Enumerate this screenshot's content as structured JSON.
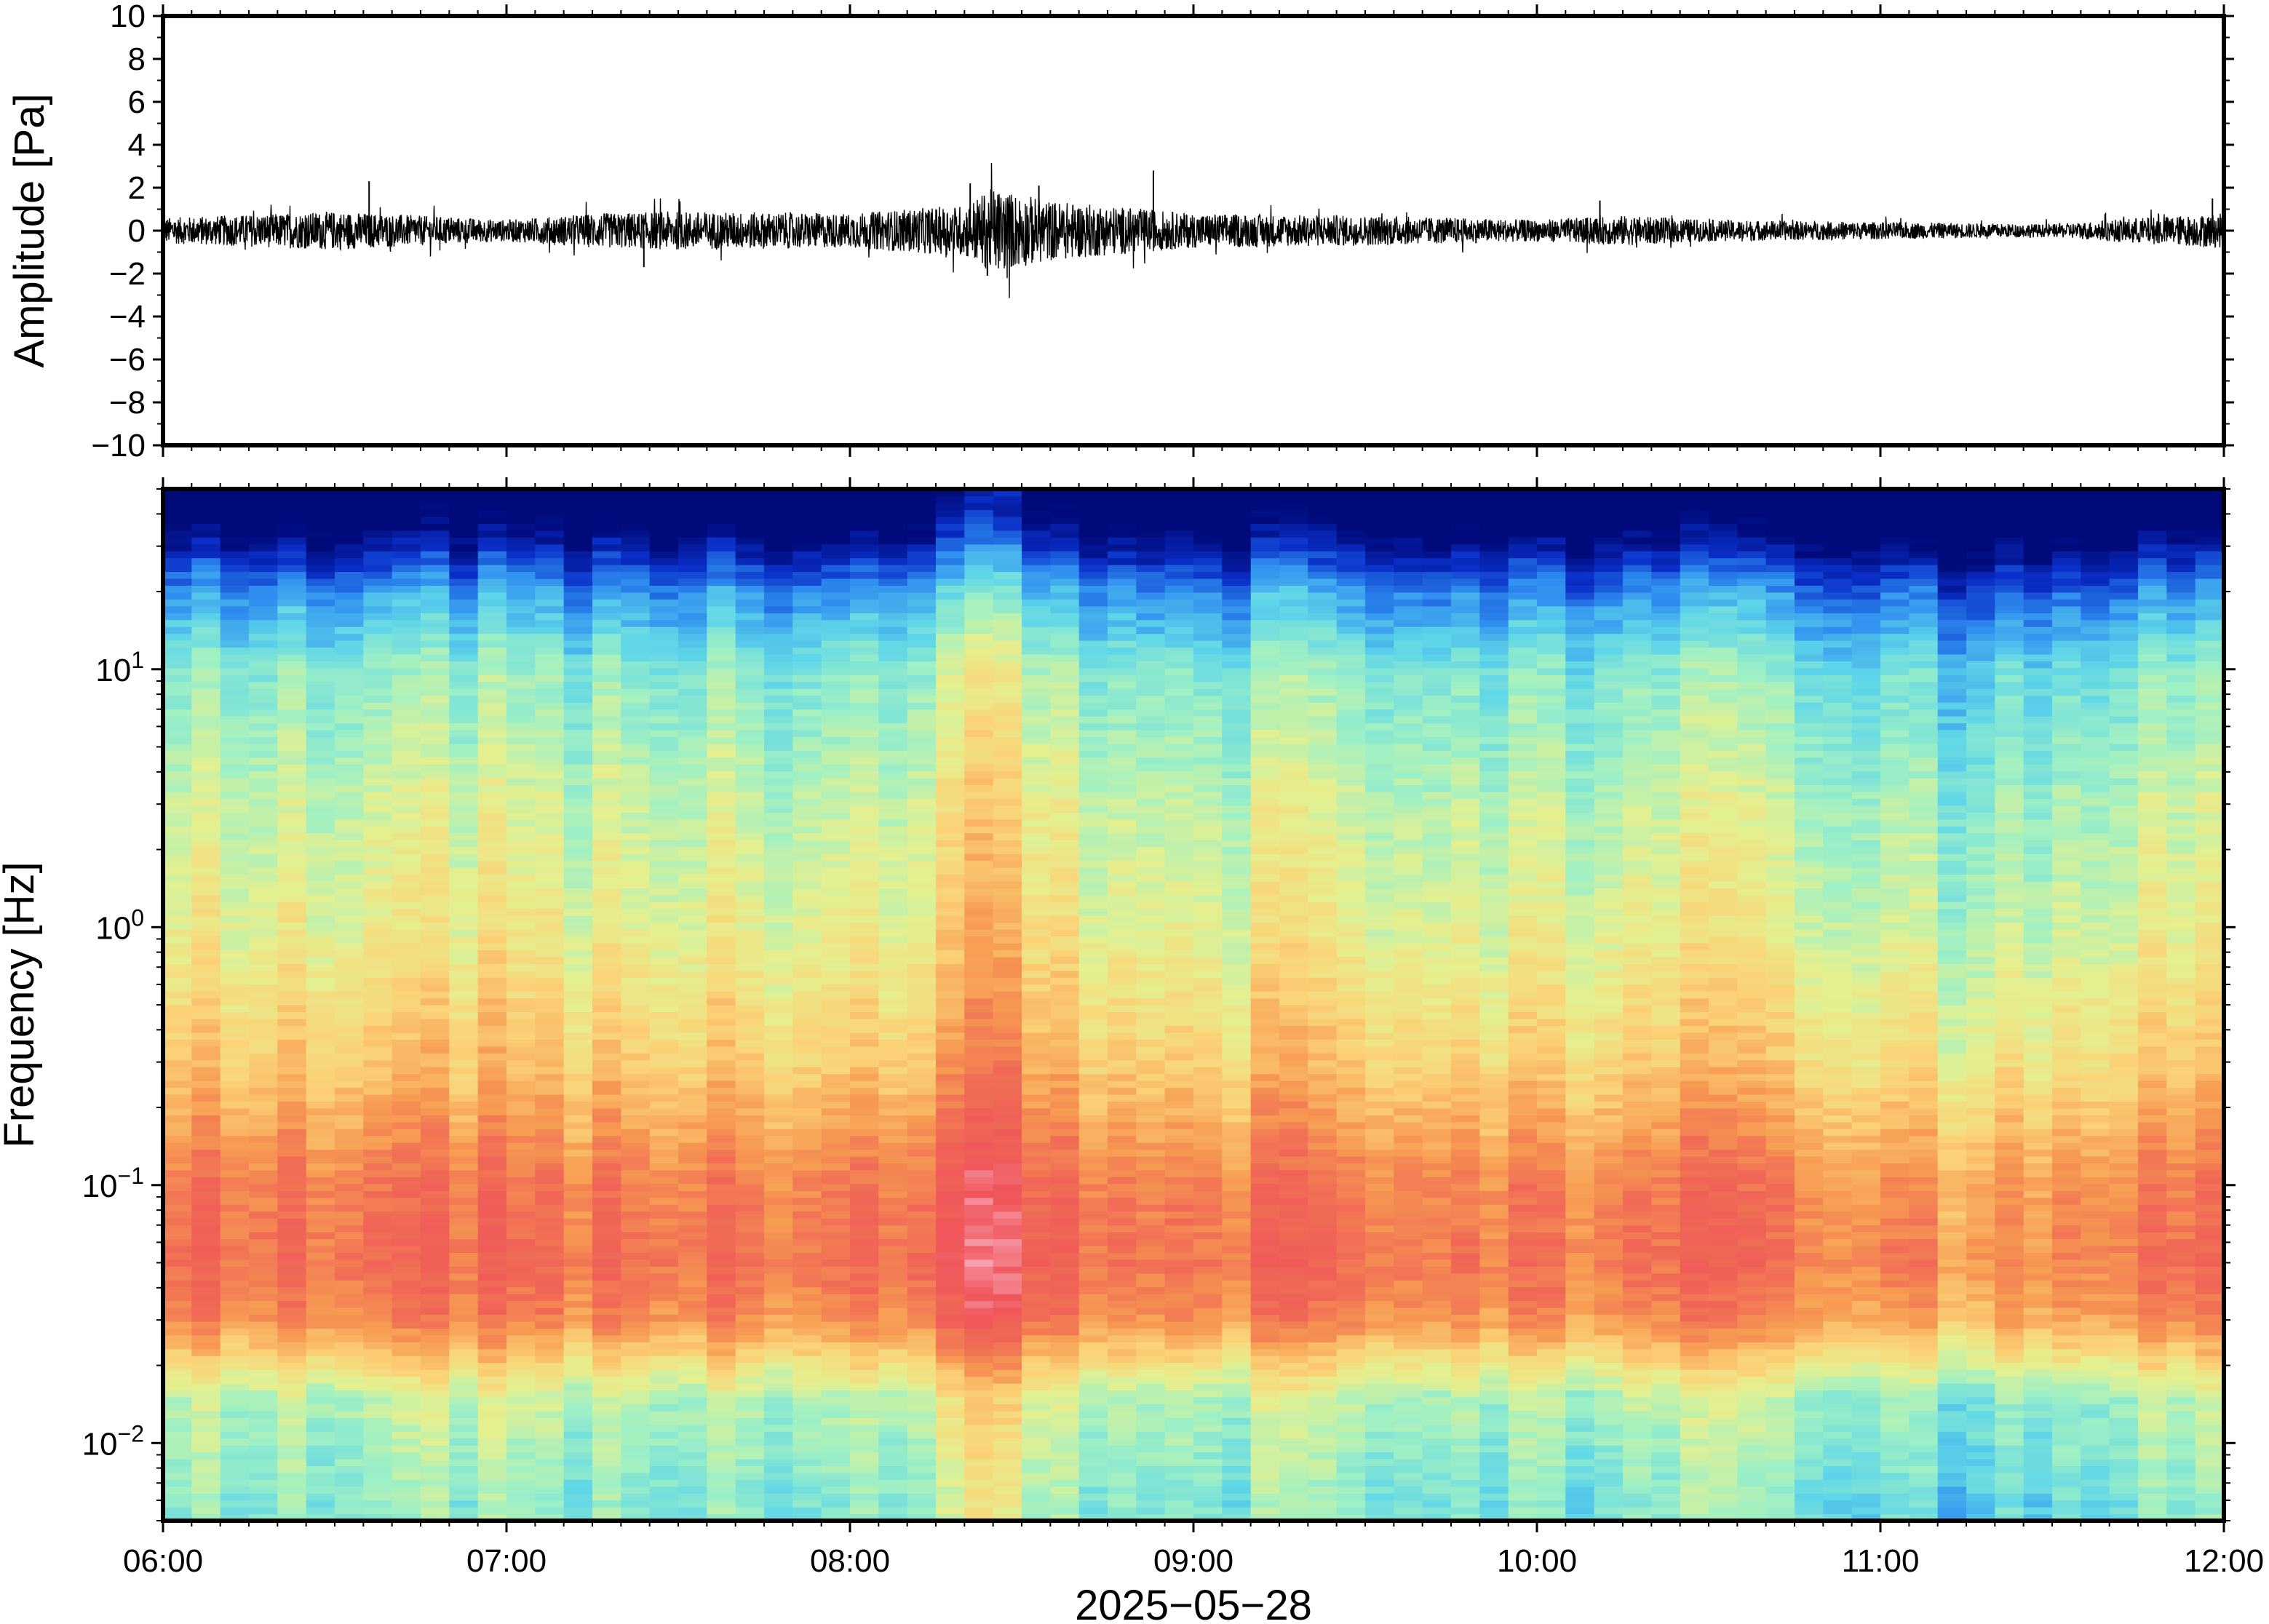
{
  "chart_data": [
    {
      "type": "line",
      "title": "",
      "ylabel": "Amplitude [Pa]",
      "ylim": [
        -10,
        10
      ],
      "yticks": [
        "10",
        "8",
        "6",
        "4",
        "2",
        "0",
        "−2",
        "−4",
        "−6",
        "−8",
        "−10"
      ],
      "x_range": [
        "06:00",
        "12:00"
      ],
      "series": [
        {
          "color": "#000000",
          "envelope_times": [
            "06:00",
            "06:30",
            "06:45",
            "07:00",
            "07:15",
            "07:30",
            "08:00",
            "08:20",
            "08:25",
            "08:35",
            "09:00",
            "09:30",
            "10:00",
            "10:15",
            "10:30",
            "11:00",
            "11:30",
            "11:45",
            "12:00"
          ],
          "envelope_amplitude": [
            0.6,
            0.9,
            0.7,
            0.5,
            0.8,
            0.9,
            0.8,
            1.2,
            2.0,
            1.4,
            0.8,
            0.7,
            0.5,
            0.7,
            0.5,
            0.4,
            0.3,
            0.6,
            0.8
          ],
          "spikes": [
            {
              "time": "06:36",
              "value": 2.3
            },
            {
              "time": "07:24",
              "value": -1.7
            },
            {
              "time": "08:21",
              "value": 2.2
            },
            {
              "time": "08:24",
              "value": -2.1
            },
            {
              "time": "08:33",
              "value": 2.1
            },
            {
              "time": "08:53",
              "value": 2.8
            },
            {
              "time": "10:11",
              "value": 1.4
            },
            {
              "time": "11:58",
              "value": 1.5
            }
          ]
        }
      ]
    },
    {
      "type": "heatmap",
      "title": "",
      "xlabel": "2025−05−28",
      "ylabel": "Frequency [Hz]",
      "x": [
        "06:00",
        "07:00",
        "08:00",
        "09:00",
        "10:00",
        "11:00",
        "12:00"
      ],
      "y_scale": "log",
      "ylim": [
        0.005,
        50
      ],
      "yticks": [
        {
          "value": 10,
          "base": "10",
          "exp": "1"
        },
        {
          "value": 1,
          "base": "10",
          "exp": "0"
        },
        {
          "value": 0.1,
          "base": "10",
          "exp": "−1"
        },
        {
          "value": 0.01,
          "base": "10",
          "exp": "−2"
        }
      ],
      "colormap": "rainbow (blue = low power, red/pink = high power)",
      "colors": [
        "#000a7a",
        "#0a2fc8",
        "#2f8ff0",
        "#5fd6e8",
        "#9ff0c4",
        "#e4f090",
        "#fbd277",
        "#f79c52",
        "#f06a55",
        "#f0555a",
        "#f7aaba"
      ],
      "power_profile": [
        {
          "freq_hz": 40,
          "level": 0.0
        },
        {
          "freq_hz": 20,
          "level": 0.22
        },
        {
          "freq_hz": 10,
          "level": 0.38
        },
        {
          "freq_hz": 3,
          "level": 0.47
        },
        {
          "freq_hz": 1,
          "level": 0.52
        },
        {
          "freq_hz": 0.3,
          "level": 0.62
        },
        {
          "freq_hz": 0.1,
          "level": 0.77
        },
        {
          "freq_hz": 0.05,
          "level": 0.8
        },
        {
          "freq_hz": 0.03,
          "level": 0.74
        },
        {
          "freq_hz": 0.015,
          "level": 0.45
        },
        {
          "freq_hz": 0.006,
          "level": 0.38
        }
      ],
      "time_modulation": [
        {
          "time": "08:25",
          "delta": 0.12,
          "note": "broadband peak, pink near 0.03–0.06 Hz"
        },
        {
          "time": "09:55",
          "delta": -0.05
        },
        {
          "time": "11:00",
          "delta": -0.08
        },
        {
          "time": "11:20",
          "delta": -0.07
        }
      ]
    }
  ],
  "x_ticks": [
    "06:00",
    "07:00",
    "08:00",
    "09:00",
    "10:00",
    "11:00",
    "12:00"
  ],
  "date_label": "2025−05−28"
}
